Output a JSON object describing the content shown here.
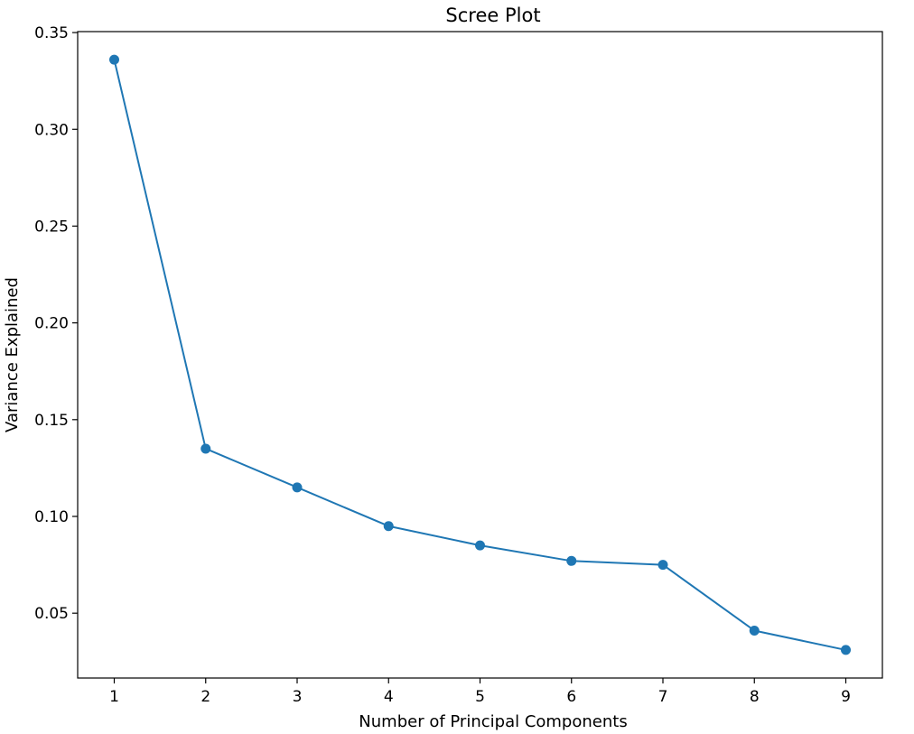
{
  "chart_data": {
    "type": "line",
    "title": "Scree Plot",
    "xlabel": "Number of Principal Components",
    "ylabel": "Variance Explained",
    "x": [
      1,
      2,
      3,
      4,
      5,
      6,
      7,
      8,
      9
    ],
    "series": [
      {
        "values": [
          0.336,
          0.135,
          0.115,
          0.095,
          0.085,
          0.077,
          0.075,
          0.041,
          0.031
        ],
        "color": "#1f77b4",
        "marker": "circle"
      }
    ],
    "xticks": [
      1,
      2,
      3,
      4,
      5,
      6,
      7,
      8,
      9
    ],
    "xtick_labels": [
      "1",
      "2",
      "3",
      "4",
      "5",
      "6",
      "7",
      "8",
      "9"
    ],
    "yticks": [
      0.05,
      0.1,
      0.15,
      0.2,
      0.25,
      0.3,
      0.35
    ],
    "ytick_labels": [
      "0.05",
      "0.10",
      "0.15",
      "0.20",
      "0.25",
      "0.30",
      "0.35"
    ],
    "xlim": [
      0.6,
      9.4
    ],
    "ylim": [
      0.0165,
      0.3505
    ],
    "grid": false,
    "legend": "none"
  }
}
